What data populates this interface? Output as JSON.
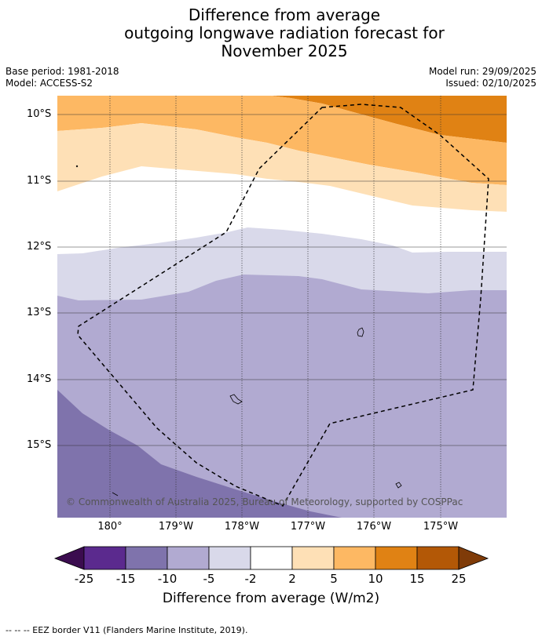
{
  "title": {
    "line1": "Difference from average",
    "line2": "outgoing longwave radiation forecast for",
    "line3": "November 2025"
  },
  "meta": {
    "base_period": "Base period: 1981-2018",
    "model": "Model: ACCESS-S2",
    "model_run": "Model run: 29/09/2025",
    "issued": "Issued: 02/10/2025"
  },
  "map": {
    "lat_labels": [
      "10°S",
      "11°S",
      "12°S",
      "13°S",
      "14°S",
      "15°S"
    ],
    "lon_labels": [
      "180°",
      "179°W",
      "178°W",
      "177°W",
      "176°W",
      "175°W"
    ],
    "copyright": "© Commonwealth of Australia 2025, Bureau of Meteorology, supported by COSPPac",
    "colors": {
      "c_m25": "#3b0c4f",
      "c_m20": "#5b2a8e",
      "c_m15": "#7f73ac",
      "c_m10": "#b1aad1",
      "c_m5": "#d9d9ea",
      "c_0": "#ffffff",
      "c_p3": "#fee0b6",
      "c_p7": "#fdb863",
      "c_p12": "#e08214",
      "c_p20": "#b35806",
      "c_p25": "#7f3b08"
    }
  },
  "colorbar": {
    "labels": [
      "-25",
      "-15",
      "-10",
      "-5",
      "-2",
      "2",
      "5",
      "10",
      "15",
      "25"
    ],
    "title": "Difference from average (W/m2)"
  },
  "footnote": "--  --  -- EEZ border V11 (Flanders Marine Institute, 2019)."
}
